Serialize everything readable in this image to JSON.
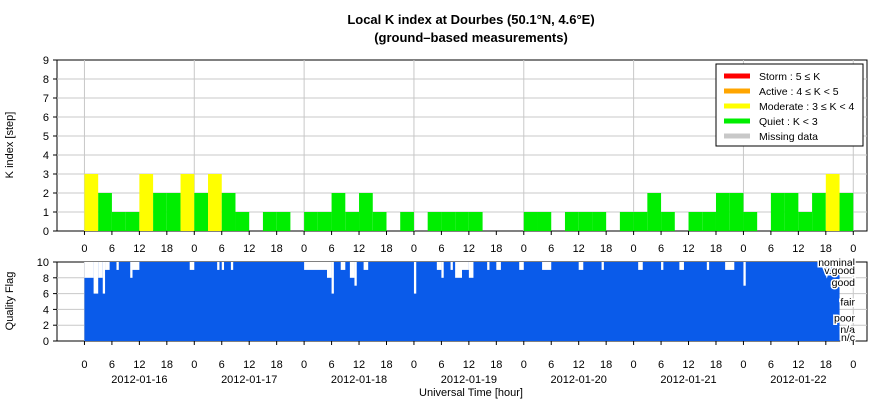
{
  "title": "Local K index at Dourbes (50.1°N, 4.6°E)",
  "subtitle": "(ground–based measurements)",
  "colors": {
    "storm": "#ff0000",
    "active": "#ffa500",
    "moderate": "#ffff00",
    "quiet": "#00ee00",
    "missing": "#c8c8c8",
    "quality": "#0a5bea",
    "grid": "#c8c8c8"
  },
  "legend": {
    "placement": "top-right",
    "items": [
      {
        "key": "storm",
        "label": "Storm : 5 ≤ K"
      },
      {
        "key": "active",
        "label": "Active : 4 ≤ K < 5"
      },
      {
        "key": "moderate",
        "label": "Moderate : 3 ≤ K < 4"
      },
      {
        "key": "quiet",
        "label": "Quiet : K < 3"
      },
      {
        "key": "missing",
        "label": "Missing data"
      }
    ]
  },
  "chart_data": [
    {
      "type": "bar",
      "panel": "k_index",
      "ylabel": "K index [step]",
      "ylim": [
        0,
        9
      ],
      "yticks": [
        0,
        1,
        2,
        3,
        4,
        5,
        6,
        7,
        8,
        9
      ],
      "x_unit": "hour",
      "x_range_hours": [
        -6,
        171
      ],
      "hour_tick_labels": [
        "0",
        "6",
        "12",
        "18",
        "0",
        "6",
        "12",
        "18",
        "0",
        "6",
        "12",
        "18",
        "0",
        "6",
        "12",
        "18",
        "0",
        "6",
        "12",
        "18",
        "0",
        "6",
        "12",
        "18",
        "0",
        "6",
        "12",
        "18",
        "0"
      ],
      "grid": true,
      "bars_note": "start = hours since 2012-01-16 00:00 UT, value = K index",
      "bars": [
        {
          "start": 0,
          "value": 3
        },
        {
          "start": 3,
          "value": 2
        },
        {
          "start": 6,
          "value": 1
        },
        {
          "start": 9,
          "value": 1
        },
        {
          "start": 12,
          "value": 3
        },
        {
          "start": 15,
          "value": 2
        },
        {
          "start": 18,
          "value": 2
        },
        {
          "start": 21,
          "value": 3
        },
        {
          "start": 24,
          "value": 2
        },
        {
          "start": 27,
          "value": 3
        },
        {
          "start": 30,
          "value": 2
        },
        {
          "start": 33,
          "value": 1
        },
        {
          "start": 36,
          "value": 0
        },
        {
          "start": 39,
          "value": 1
        },
        {
          "start": 42,
          "value": 1
        },
        {
          "start": 45,
          "value": 0
        },
        {
          "start": 48,
          "value": 1
        },
        {
          "start": 51,
          "value": 1
        },
        {
          "start": 54,
          "value": 2
        },
        {
          "start": 57,
          "value": 1
        },
        {
          "start": 60,
          "value": 2
        },
        {
          "start": 63,
          "value": 1
        },
        {
          "start": 66,
          "value": 0
        },
        {
          "start": 69,
          "value": 1
        },
        {
          "start": 72,
          "value": 0
        },
        {
          "start": 75,
          "value": 1
        },
        {
          "start": 78,
          "value": 1
        },
        {
          "start": 81,
          "value": 1
        },
        {
          "start": 84,
          "value": 1
        },
        {
          "start": 87,
          "value": 0
        },
        {
          "start": 90,
          "value": 0
        },
        {
          "start": 93,
          "value": 0
        },
        {
          "start": 96,
          "value": 1
        },
        {
          "start": 99,
          "value": 1
        },
        {
          "start": 102,
          "value": 0
        },
        {
          "start": 105,
          "value": 1
        },
        {
          "start": 108,
          "value": 1
        },
        {
          "start": 111,
          "value": 1
        },
        {
          "start": 114,
          "value": 0
        },
        {
          "start": 117,
          "value": 1
        },
        {
          "start": 120,
          "value": 1
        },
        {
          "start": 123,
          "value": 2
        },
        {
          "start": 126,
          "value": 1
        },
        {
          "start": 129,
          "value": 0
        },
        {
          "start": 132,
          "value": 1
        },
        {
          "start": 135,
          "value": 1
        },
        {
          "start": 138,
          "value": 2
        },
        {
          "start": 141,
          "value": 2
        },
        {
          "start": 144,
          "value": 1
        },
        {
          "start": 147,
          "value": 0
        },
        {
          "start": 150,
          "value": 2
        },
        {
          "start": 153,
          "value": 2
        },
        {
          "start": 156,
          "value": 1
        },
        {
          "start": 159,
          "value": 2
        },
        {
          "start": 162,
          "value": 3
        },
        {
          "start": 165,
          "value": 2
        }
      ]
    },
    {
      "type": "area",
      "panel": "quality",
      "ylabel": "Quality Flag",
      "xlabel": "Universal Time [hour]",
      "ylim": [
        0,
        10
      ],
      "yticks": [
        0,
        2,
        4,
        6,
        8,
        10
      ],
      "x_range_hours": [
        -6,
        171
      ],
      "grid": true,
      "flag_labels": [
        {
          "label": "nominal",
          "value": 10
        },
        {
          "label": "v.good",
          "value": 9
        },
        {
          "label": "good",
          "value": 7.5
        },
        {
          "label": "fair",
          "value": 5
        },
        {
          "label": "poor",
          "value": 3
        },
        {
          "label": "n/a",
          "value": 1.5
        },
        {
          "label": "n/c",
          "value": 0.5
        }
      ],
      "date_labels": [
        {
          "label": "2012-01-16",
          "at_hour": 12
        },
        {
          "label": "2012-01-17",
          "at_hour": 36
        },
        {
          "label": "2012-01-18",
          "at_hour": 60
        },
        {
          "label": "2012-01-19",
          "at_hour": 84
        },
        {
          "label": "2012-01-20",
          "at_hour": 108
        },
        {
          "label": "2012-01-21",
          "at_hour": 132
        },
        {
          "label": "2012-01-22",
          "at_hour": 156
        }
      ],
      "baseline_value": 10,
      "dips_note": "start/end = hours since 2012-01-16 00:00 UT, value = flag level",
      "dips": [
        {
          "start": 0,
          "end": 2,
          "value": 8
        },
        {
          "start": 2,
          "end": 3,
          "value": 6
        },
        {
          "start": 3,
          "end": 4,
          "value": 8
        },
        {
          "start": 4,
          "end": 4.5,
          "value": 6
        },
        {
          "start": 4.5,
          "end": 5.5,
          "value": 9
        },
        {
          "start": 7,
          "end": 7.5,
          "value": 9
        },
        {
          "start": 10,
          "end": 10.5,
          "value": 8
        },
        {
          "start": 10.5,
          "end": 12,
          "value": 9
        },
        {
          "start": 23,
          "end": 24,
          "value": 9
        },
        {
          "start": 29,
          "end": 29.5,
          "value": 9
        },
        {
          "start": 30,
          "end": 30.5,
          "value": 9
        },
        {
          "start": 32,
          "end": 32.5,
          "value": 9
        },
        {
          "start": 48,
          "end": 53,
          "value": 9
        },
        {
          "start": 53,
          "end": 54,
          "value": 8
        },
        {
          "start": 54,
          "end": 54.5,
          "value": 6
        },
        {
          "start": 56,
          "end": 57,
          "value": 9
        },
        {
          "start": 58,
          "end": 59,
          "value": 8
        },
        {
          "start": 59,
          "end": 59.5,
          "value": 7
        },
        {
          "start": 61,
          "end": 62,
          "value": 9
        },
        {
          "start": 72,
          "end": 72.5,
          "value": 6
        },
        {
          "start": 77,
          "end": 78,
          "value": 9
        },
        {
          "start": 78,
          "end": 78.5,
          "value": 8
        },
        {
          "start": 80,
          "end": 80.5,
          "value": 9
        },
        {
          "start": 81,
          "end": 82.5,
          "value": 8
        },
        {
          "start": 82.5,
          "end": 84,
          "value": 9
        },
        {
          "start": 84,
          "end": 85,
          "value": 8
        },
        {
          "start": 88,
          "end": 88.5,
          "value": 9
        },
        {
          "start": 90,
          "end": 91,
          "value": 9
        },
        {
          "start": 95,
          "end": 96,
          "value": 9
        },
        {
          "start": 100,
          "end": 102,
          "value": 9
        },
        {
          "start": 108,
          "end": 109,
          "value": 9
        },
        {
          "start": 113,
          "end": 113.5,
          "value": 9
        },
        {
          "start": 121,
          "end": 122,
          "value": 9
        },
        {
          "start": 126,
          "end": 126.5,
          "value": 9
        },
        {
          "start": 130,
          "end": 131,
          "value": 9
        },
        {
          "start": 136,
          "end": 136.5,
          "value": 9
        },
        {
          "start": 140,
          "end": 142,
          "value": 9
        },
        {
          "start": 144,
          "end": 144.5,
          "value": 7
        },
        {
          "start": 164,
          "end": 165,
          "value": 9
        }
      ]
    }
  ]
}
